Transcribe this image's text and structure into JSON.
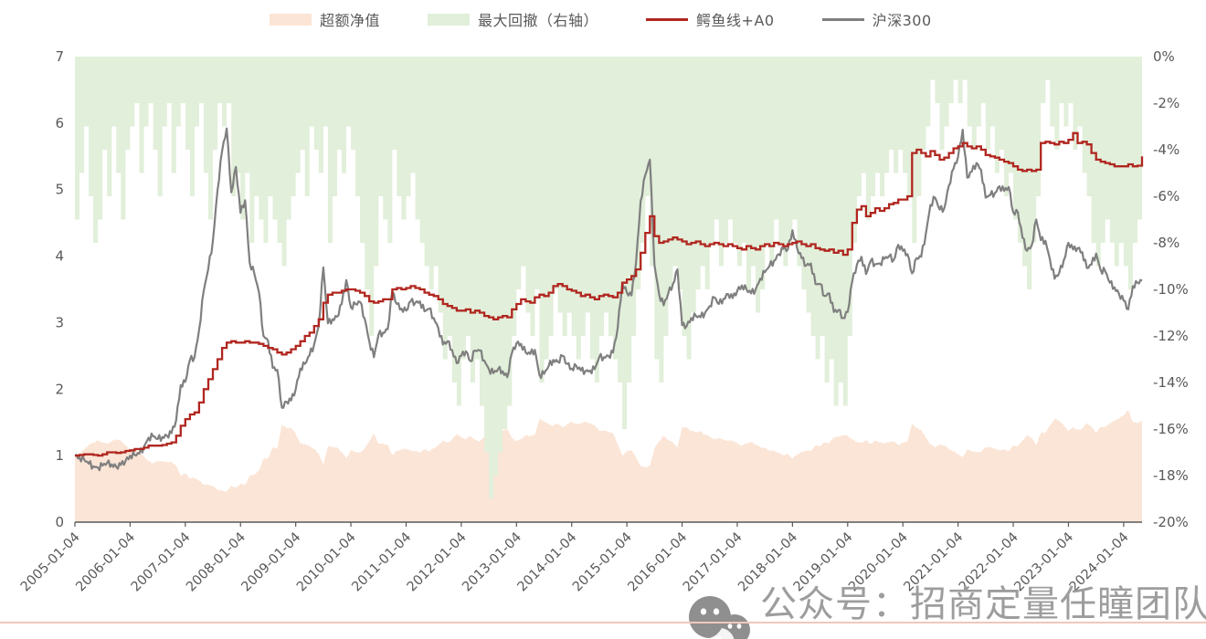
{
  "page": {
    "background": "#ffffff",
    "text_color": "#595959"
  },
  "watermark": {
    "icon": "wechat-icon",
    "text": "公众号：招商定量任瞳团队"
  },
  "chart_data": {
    "type": "combo",
    "title": "",
    "grid": "off",
    "legend_position": "top",
    "x_start": "2005-01",
    "x_step_months": 1,
    "points": 233,
    "x_tick_labels": [
      "2005-01-04",
      "2006-01-04",
      "2007-01-04",
      "2008-01-04",
      "2009-01-04",
      "2010-01-04",
      "2011-01-04",
      "2012-01-04",
      "2013-01-04",
      "2014-01-04",
      "2015-01-04",
      "2016-01-04",
      "2017-01-04",
      "2018-01-04",
      "2019-01-04",
      "2020-01-04",
      "2021-01-04",
      "2022-01-04",
      "2023-01-04",
      "2024-01-04"
    ],
    "left_axis": {
      "range": [
        0,
        7
      ],
      "ticks": [
        "7",
        "6",
        "5",
        "4",
        "3",
        "2",
        "1",
        "0"
      ]
    },
    "right_axis": {
      "range": [
        0,
        -20
      ],
      "ticks": [
        "0%",
        "-2%",
        "-4%",
        "-6%",
        "-8%",
        "-10%",
        "-12%",
        "-14%",
        "-16%",
        "-18%",
        "-20%"
      ]
    },
    "series": [
      {
        "id": "excess-nav",
        "name": "超额净值",
        "type": "area",
        "axis": "left",
        "color": "#FBE5D6",
        "values": [
          1.0,
          1.04,
          1.09,
          1.16,
          1.2,
          1.22,
          1.2,
          1.18,
          1.21,
          1.25,
          1.22,
          1.16,
          1.08,
          1.09,
          1.07,
          0.99,
          0.91,
          0.89,
          0.92,
          0.91,
          0.91,
          0.9,
          0.85,
          0.7,
          0.73,
          0.66,
          0.67,
          0.62,
          0.57,
          0.56,
          0.54,
          0.49,
          0.47,
          0.46,
          0.55,
          0.51,
          0.58,
          0.56,
          0.69,
          0.72,
          0.77,
          0.95,
          0.96,
          1.12,
          1.11,
          1.47,
          1.41,
          1.42,
          1.33,
          1.18,
          1.18,
          1.14,
          1.1,
          1.03,
          0.86,
          1.14,
          1.13,
          1.12,
          1.06,
          0.96,
          1.08,
          1.06,
          1.04,
          1.11,
          1.22,
          1.33,
          1.18,
          1.18,
          1.16,
          1.01,
          1.07,
          1.09,
          1.11,
          1.07,
          1.07,
          1.05,
          1.09,
          1.07,
          1.11,
          1.15,
          1.23,
          1.19,
          1.24,
          1.33,
          1.27,
          1.25,
          1.3,
          1.23,
          1.22,
          1.28,
          1.34,
          1.36,
          1.34,
          1.37,
          1.41,
          1.26,
          1.22,
          1.25,
          1.3,
          1.3,
          1.31,
          1.55,
          1.52,
          1.47,
          1.45,
          1.49,
          1.42,
          1.47,
          1.51,
          1.47,
          1.49,
          1.51,
          1.48,
          1.46,
          1.37,
          1.38,
          1.36,
          1.33,
          1.18,
          1.0,
          1.06,
          1.09,
          0.97,
          0.84,
          0.83,
          0.84,
          1.11,
          1.22,
          1.29,
          1.24,
          1.2,
          1.12,
          1.43,
          1.42,
          1.37,
          1.36,
          1.36,
          1.32,
          1.29,
          1.24,
          1.27,
          1.24,
          1.22,
          1.23,
          1.18,
          1.15,
          1.19,
          1.2,
          1.17,
          1.13,
          1.11,
          1.08,
          1.07,
          1.04,
          1.01,
          1.02,
          0.96,
          1.02,
          1.05,
          1.08,
          1.07,
          1.15,
          1.15,
          1.2,
          1.19,
          1.28,
          1.28,
          1.31,
          1.3,
          1.24,
          1.21,
          1.19,
          1.23,
          1.18,
          1.22,
          1.2,
          1.19,
          1.2,
          1.22,
          1.16,
          1.19,
          1.22,
          1.48,
          1.41,
          1.39,
          1.27,
          1.17,
          1.13,
          1.16,
          1.16,
          1.1,
          1.06,
          1.03,
          0.97,
          1.09,
          1.07,
          1.05,
          1.06,
          1.13,
          1.12,
          1.11,
          1.08,
          1.09,
          1.07,
          1.15,
          1.14,
          1.23,
          1.3,
          1.27,
          1.16,
          1.34,
          1.35,
          1.45,
          1.55,
          1.53,
          1.45,
          1.37,
          1.43,
          1.38,
          1.41,
          1.49,
          1.43,
          1.35,
          1.43,
          1.43,
          1.49,
          1.52,
          1.56,
          1.61,
          1.68,
          1.51,
          1.49,
          1.52
        ]
      },
      {
        "id": "max-drawdown",
        "name": "最大回撤（右轴）",
        "type": "step-area-from-top",
        "axis": "right",
        "color": "#E2EFDA",
        "values": [
          -7,
          -5,
          -3,
          -6,
          -8,
          -7,
          -4,
          -6,
          -3,
          -5,
          -7,
          -4,
          -3,
          -2,
          -5,
          -3,
          -2,
          -4,
          -6,
          -3,
          -2,
          -5,
          -3,
          -2,
          -4,
          -6,
          -3,
          -2,
          -5,
          -7,
          -4,
          -2,
          -3,
          -2,
          -6,
          -5,
          -7,
          -5,
          -8,
          -6,
          -7,
          -8,
          -6,
          -7,
          -8,
          -9,
          -7,
          -6,
          -5,
          -4,
          -6,
          -3,
          -4,
          -5,
          -3,
          -8,
          -6,
          -4,
          -5,
          -3,
          -4,
          -6,
          -8,
          -10,
          -12,
          -9,
          -6,
          -7,
          -8,
          -4,
          -6,
          -7,
          -6,
          -5,
          -7,
          -8,
          -9,
          -10,
          -9,
          -11,
          -13,
          -12,
          -14,
          -15,
          -13,
          -12,
          -14,
          -13,
          -15,
          -17,
          -19,
          -18,
          -17,
          -16,
          -15,
          -12,
          -10,
          -9,
          -11,
          -12,
          -10,
          -14,
          -13,
          -12,
          -10,
          -11,
          -12,
          -11,
          -12,
          -13,
          -12,
          -11,
          -13,
          -14,
          -12,
          -11,
          -12,
          -13,
          -14,
          -16,
          -14,
          -12,
          -10,
          -8,
          -6,
          -9,
          -13,
          -14,
          -12,
          -10,
          -9,
          -10,
          -12,
          -13,
          -11,
          -10,
          -9,
          -10,
          -8,
          -7,
          -9,
          -8,
          -7,
          -8,
          -9,
          -8,
          -10,
          -9,
          -11,
          -10,
          -8,
          -9,
          -7,
          -8,
          -9,
          -8,
          -7,
          -9,
          -10,
          -11,
          -12,
          -13,
          -12,
          -14,
          -13,
          -15,
          -14,
          -15,
          -12,
          -8,
          -6,
          -5,
          -7,
          -6,
          -5,
          -6,
          -5,
          -4,
          -5,
          -4,
          -5,
          -6,
          -8,
          -6,
          -4,
          -3,
          -1,
          -2,
          -4,
          -3,
          -2,
          -1,
          -2,
          -1,
          -3,
          -4,
          -3,
          -2,
          -4,
          -3,
          -5,
          -4,
          -6,
          -5,
          -7,
          -8,
          -9,
          -10,
          -8,
          -6,
          -2,
          -1,
          -3,
          -4,
          -2,
          -3,
          -2,
          -4,
          -3,
          -5,
          -6,
          -8,
          -9,
          -8,
          -7,
          -8,
          -9,
          -8,
          -9,
          -10,
          -8,
          -7,
          -5
        ]
      },
      {
        "id": "alligator-a0",
        "name": "鳄鱼线+A0",
        "type": "step-line",
        "axis": "left",
        "color": "#B0261F",
        "values": [
          1.0,
          1.01,
          1.02,
          1.02,
          1.01,
          1.0,
          1.02,
          1.05,
          1.05,
          1.04,
          1.05,
          1.07,
          1.08,
          1.1,
          1.1,
          1.12,
          1.15,
          1.15,
          1.15,
          1.16,
          1.18,
          1.2,
          1.3,
          1.45,
          1.55,
          1.62,
          1.65,
          1.8,
          2.0,
          2.15,
          2.3,
          2.45,
          2.62,
          2.7,
          2.72,
          2.7,
          2.7,
          2.72,
          2.7,
          2.7,
          2.68,
          2.65,
          2.62,
          2.6,
          2.55,
          2.52,
          2.55,
          2.6,
          2.65,
          2.72,
          2.8,
          2.85,
          2.95,
          3.05,
          3.3,
          3.42,
          3.45,
          3.45,
          3.48,
          3.5,
          3.5,
          3.48,
          3.45,
          3.4,
          3.32,
          3.3,
          3.32,
          3.35,
          3.35,
          3.5,
          3.52,
          3.5,
          3.52,
          3.55,
          3.52,
          3.5,
          3.45,
          3.42,
          3.4,
          3.35,
          3.28,
          3.25,
          3.22,
          3.18,
          3.18,
          3.2,
          3.15,
          3.18,
          3.15,
          3.1,
          3.08,
          3.05,
          3.08,
          3.1,
          3.08,
          3.2,
          3.28,
          3.35,
          3.32,
          3.3,
          3.38,
          3.42,
          3.4,
          3.45,
          3.55,
          3.58,
          3.55,
          3.5,
          3.48,
          3.45,
          3.4,
          3.42,
          3.38,
          3.35,
          3.4,
          3.42,
          3.4,
          3.38,
          3.45,
          3.6,
          3.65,
          3.7,
          3.8,
          4.05,
          4.35,
          4.6,
          4.3,
          4.2,
          4.22,
          4.25,
          4.28,
          4.25,
          4.22,
          4.18,
          4.2,
          4.22,
          4.18,
          4.15,
          4.18,
          4.2,
          4.18,
          4.15,
          4.18,
          4.15,
          4.12,
          4.1,
          4.15,
          4.12,
          4.1,
          4.15,
          4.18,
          4.15,
          4.2,
          4.18,
          4.15,
          4.18,
          4.2,
          4.22,
          4.18,
          4.15,
          4.18,
          4.12,
          4.1,
          4.08,
          4.1,
          4.05,
          4.08,
          4.02,
          4.1,
          4.5,
          4.7,
          4.75,
          4.6,
          4.65,
          4.72,
          4.68,
          4.72,
          4.78,
          4.8,
          4.85,
          4.85,
          4.9,
          5.55,
          5.6,
          5.55,
          5.5,
          5.58,
          5.52,
          5.45,
          5.48,
          5.55,
          5.62,
          5.65,
          5.7,
          5.65,
          5.62,
          5.65,
          5.6,
          5.52,
          5.5,
          5.48,
          5.45,
          5.42,
          5.4,
          5.35,
          5.3,
          5.28,
          5.3,
          5.28,
          5.3,
          5.7,
          5.72,
          5.7,
          5.68,
          5.72,
          5.7,
          5.75,
          5.85,
          5.7,
          5.72,
          5.68,
          5.55,
          5.45,
          5.42,
          5.4,
          5.38,
          5.35,
          5.35,
          5.35,
          5.38,
          5.35,
          5.36,
          5.5
        ]
      },
      {
        "id": "csi300",
        "name": "沪深300",
        "type": "line",
        "axis": "left",
        "color": "#7F7F7F",
        "values": [
          1.0,
          0.97,
          0.94,
          0.88,
          0.84,
          0.82,
          0.85,
          0.89,
          0.87,
          0.83,
          0.86,
          0.92,
          1.0,
          1.01,
          1.03,
          1.13,
          1.27,
          1.29,
          1.25,
          1.28,
          1.3,
          1.34,
          1.53,
          2.06,
          2.11,
          2.44,
          2.48,
          2.89,
          3.48,
          3.81,
          4.23,
          4.99,
          5.58,
          5.92,
          4.96,
          5.34,
          4.65,
          4.84,
          3.9,
          3.74,
          3.46,
          2.8,
          2.73,
          2.32,
          2.29,
          1.72,
          1.81,
          1.83,
          2.0,
          2.31,
          2.38,
          2.51,
          2.67,
          2.95,
          3.83,
          2.99,
          3.05,
          3.09,
          3.28,
          3.64,
          3.23,
          3.28,
          3.31,
          3.06,
          2.72,
          2.48,
          2.82,
          2.85,
          2.9,
          3.47,
          3.28,
          3.21,
          3.18,
          3.32,
          3.3,
          3.32,
          3.17,
          3.21,
          3.07,
          2.92,
          2.67,
          2.72,
          2.59,
          2.39,
          2.5,
          2.57,
          2.42,
          2.58,
          2.58,
          2.43,
          2.3,
          2.24,
          2.3,
          2.27,
          2.18,
          2.54,
          2.69,
          2.68,
          2.55,
          2.53,
          2.59,
          2.21,
          2.23,
          2.35,
          2.44,
          2.41,
          2.5,
          2.38,
          2.31,
          2.35,
          2.28,
          2.27,
          2.28,
          2.3,
          2.48,
          2.48,
          2.5,
          2.55,
          2.92,
          3.6,
          3.45,
          3.41,
          3.91,
          4.83,
          5.22,
          5.45,
          3.87,
          3.43,
          3.26,
          3.44,
          3.58,
          3.8,
          2.96,
          2.95,
          3.07,
          3.1,
          3.08,
          3.15,
          3.25,
          3.38,
          3.28,
          3.36,
          3.43,
          3.37,
          3.48,
          3.56,
          3.5,
          3.44,
          3.5,
          3.66,
          3.76,
          3.85,
          3.93,
          4.03,
          4.11,
          4.1,
          4.39,
          4.12,
          3.97,
          3.86,
          3.89,
          3.58,
          3.58,
          3.4,
          3.44,
          3.16,
          3.19,
          3.07,
          3.16,
          3.62,
          3.87,
          3.99,
          3.73,
          3.93,
          3.88,
          3.89,
          3.96,
          4.0,
          3.94,
          4.17,
          4.08,
          4.03,
          3.74,
          3.97,
          3.99,
          4.34,
          4.77,
          4.88,
          4.7,
          4.72,
          5.06,
          5.31,
          5.49,
          5.9,
          5.18,
          5.27,
          5.4,
          5.3,
          4.88,
          4.92,
          4.95,
          5.05,
          4.98,
          5.04,
          4.66,
          4.66,
          4.28,
          4.08,
          4.16,
          4.55,
          4.24,
          4.23,
          3.94,
          3.66,
          3.75,
          3.94,
          4.2,
          4.1,
          4.12,
          4.06,
          3.82,
          3.87,
          4.04,
          3.79,
          3.77,
          3.6,
          3.53,
          3.43,
          3.33,
          3.2,
          3.55,
          3.6,
          3.63
        ]
      }
    ]
  }
}
